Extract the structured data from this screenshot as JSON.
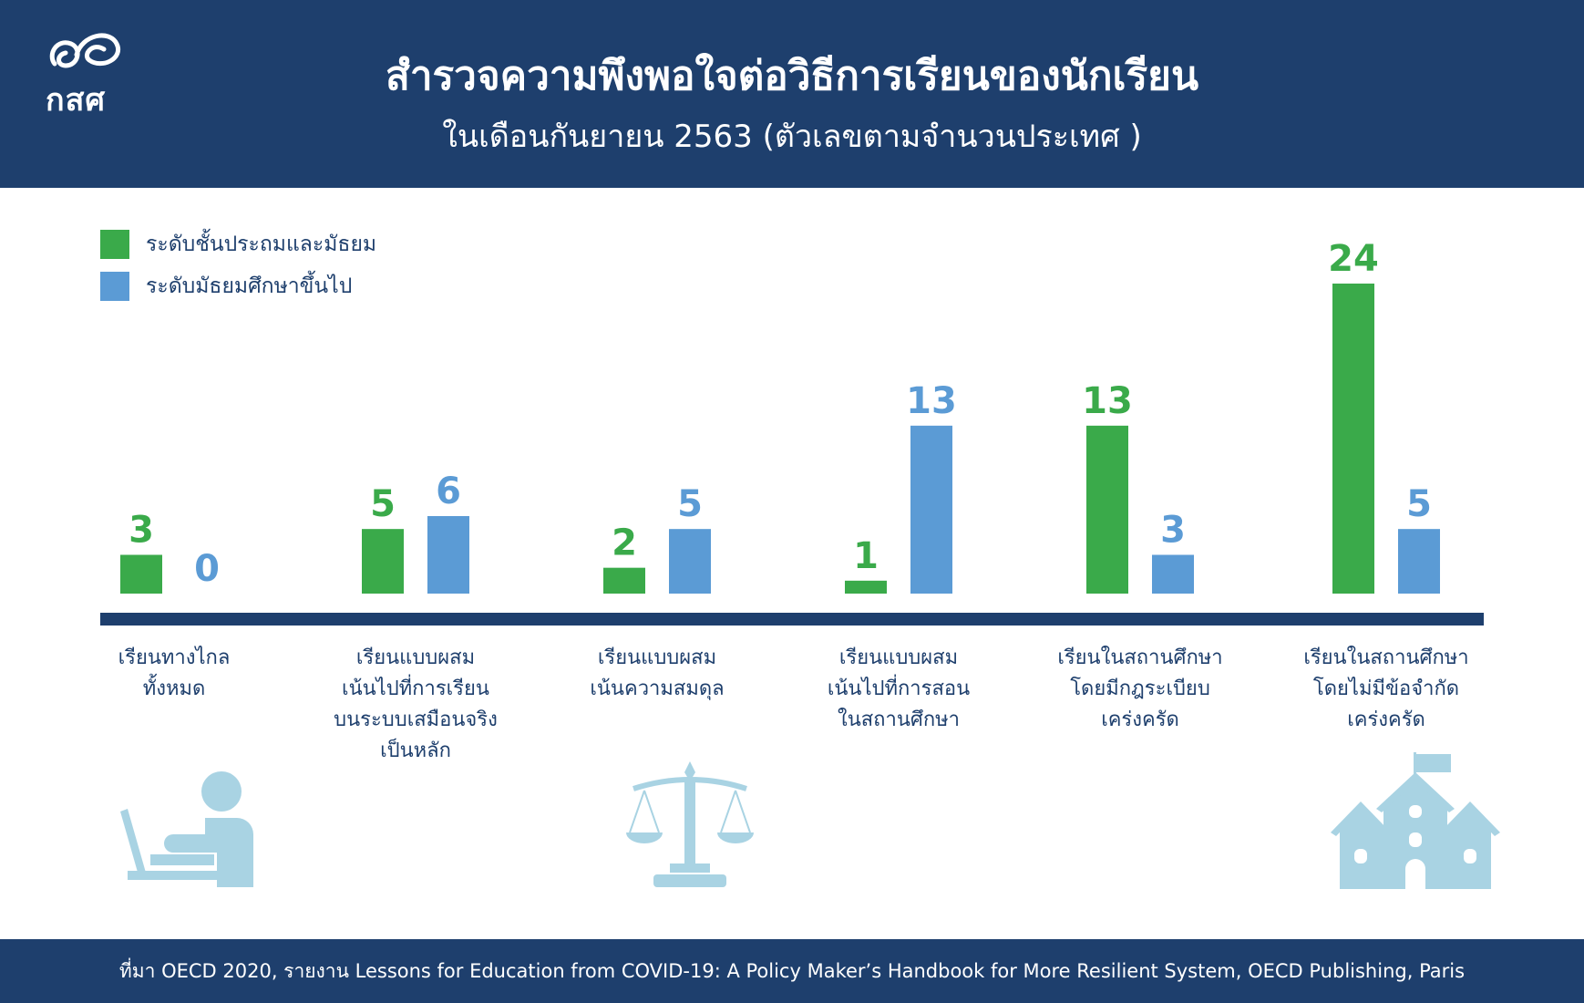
{
  "header": {
    "logo_text": "กสศ",
    "title": "สำรวจความพึงพอใจต่อวิธีการเรียนของนักเรียน",
    "subtitle": "ในเดือนกันยายน 2563 (ตัวเลขตามจำนวนประเทศ )"
  },
  "legend": [
    {
      "label": "ระดับชั้นประถมและมัธยม",
      "color": "#3aaa4a"
    },
    {
      "label": "ระดับมัธยมศึกษาขึ้นไป",
      "color": "#5b9bd5"
    }
  ],
  "categories": [
    {
      "lines": [
        "เรียนทางไกล",
        "ทั้งหมด"
      ]
    },
    {
      "lines": [
        "เรียนแบบผสม",
        "เน้นไปที่การเรียน",
        "บนระบบเสมือนจริง",
        "เป็นหลัก"
      ]
    },
    {
      "lines": [
        "เรียนแบบผสม",
        "เน้นความสมดุล"
      ]
    },
    {
      "lines": [
        "เรียนแบบผสม",
        "เน้นไปที่การสอน",
        "ในสถานศึกษา"
      ]
    },
    {
      "lines": [
        "เรียนในสถานศึกษา",
        "โดยมีกฎระเบียบ",
        "เคร่งครัด"
      ]
    },
    {
      "lines": [
        "เรียนในสถานศึกษา",
        "โดยไม่มีข้อจำกัด",
        "เคร่งครัด"
      ]
    }
  ],
  "chart_data": {
    "type": "bar",
    "title": "สำรวจความพึงพอใจต่อวิธีการเรียนของนักเรียน",
    "subtitle": "ในเดือนกันยายน 2563 (ตัวเลขตามจำนวนประเทศ )",
    "categories": [
      "เรียนทางไกลทั้งหมด",
      "เรียนแบบผสมเน้นไปที่การเรียนบนระบบเสมือนจริงเป็นหลัก",
      "เรียนแบบผสมเน้นความสมดุล",
      "เรียนแบบผสมเน้นไปที่การสอนในสถานศึกษา",
      "เรียนในสถานศึกษาโดยมีกฎระเบียบเคร่งครัด",
      "เรียนในสถานศึกษาโดยไม่มีข้อจำกัดเคร่งครัด"
    ],
    "series": [
      {
        "name": "ระดับชั้นประถมและมัธยม",
        "values": [
          3,
          5,
          2,
          1,
          13,
          24
        ],
        "color": "#3aaa4a"
      },
      {
        "name": "ระดับมัธยมศึกษาขึ้นไป",
        "values": [
          0,
          6,
          5,
          13,
          3,
          5
        ],
        "color": "#5b9bd5"
      }
    ],
    "ylim": [
      0,
      24
    ],
    "grid": false,
    "legend_position": "top-left"
  },
  "footer": {
    "source": "ที่มา OECD 2020, รายงาน Lessons for Education from COVID-19: A Policy Maker’s Handbook for More Resilient System, OECD Publishing, Paris"
  },
  "colors": {
    "navy": "#1e3f6d",
    "green": "#3aaa4a",
    "blue": "#5b9bd5",
    "icon": "#a9d3e3"
  },
  "icons": [
    "laptop-person-icon",
    "scales-icon",
    "school-building-icon"
  ]
}
